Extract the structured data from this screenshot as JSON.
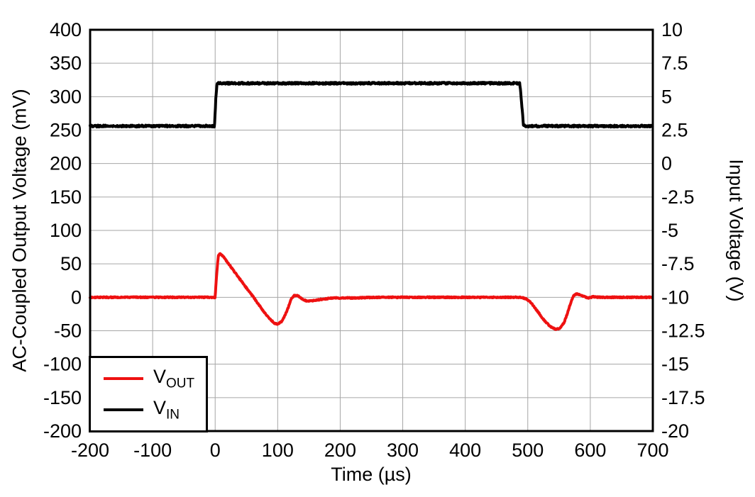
{
  "chart_data": {
    "type": "line",
    "title": "",
    "xlabel": "Time (µs)",
    "ylabel_left": "AC-Coupled Output Voltage (mV)",
    "ylabel_right": "Input Voltage (V)",
    "x_range": [
      -200,
      700
    ],
    "x_ticks": [
      -200,
      -100,
      0,
      100,
      200,
      300,
      400,
      500,
      600,
      700
    ],
    "y_left_range": [
      -200,
      400
    ],
    "y_left_ticks": [
      400,
      350,
      300,
      250,
      200,
      150,
      100,
      50,
      0,
      -50,
      -100,
      -150,
      -200
    ],
    "y_right_range": [
      -20,
      10
    ],
    "y_right_ticks": [
      10,
      7.5,
      5,
      2.5,
      0,
      -2.5,
      -5,
      -7.5,
      -10,
      -12.5,
      -15,
      -17.5,
      -20
    ],
    "grid": true,
    "legend_position": "bottom-left",
    "series": [
      {
        "name": "VOUT",
        "label_main": "V",
        "label_sub": "OUT",
        "color": "#ee1111",
        "axis": "left",
        "x": [
          -200,
          0,
          2,
          5,
          8,
          12,
          20,
          35,
          50,
          63,
          75,
          85,
          95,
          100,
          107,
          115,
          122,
          127,
          133,
          140,
          148,
          158,
          170,
          190,
          220,
          260,
          300,
          400,
          487,
          497,
          505,
          515,
          525,
          535,
          545,
          552,
          558,
          563,
          568,
          573,
          578,
          584,
          590,
          597,
          605,
          615,
          700
        ],
        "y": [
          0,
          0,
          30,
          62,
          65,
          62,
          52,
          33,
          14,
          -2,
          -18,
          -30,
          -39,
          -40,
          -36,
          -20,
          -2,
          3,
          2,
          -3,
          -6,
          -5,
          -3,
          -1,
          -1,
          0,
          0,
          0,
          0,
          -2,
          -8,
          -20,
          -33,
          -43,
          -48,
          -46,
          -38,
          -25,
          -10,
          2,
          5,
          4,
          1,
          -1,
          1,
          0,
          0
        ]
      },
      {
        "name": "VIN",
        "label_main": "V",
        "label_sub": "IN",
        "color": "#000000",
        "axis": "right",
        "x": [
          -200,
          -1,
          1,
          3,
          487,
          489,
          493,
          496,
          700
        ],
        "y": [
          2.8,
          2.8,
          4.8,
          6.0,
          6.0,
          5.2,
          2.9,
          2.8,
          2.8
        ]
      }
    ]
  },
  "colors": {
    "background": "#ffffff",
    "frame": "#000000",
    "grid": "#a6a6a6",
    "trace_red": "#ee1111",
    "trace_black": "#000000"
  }
}
